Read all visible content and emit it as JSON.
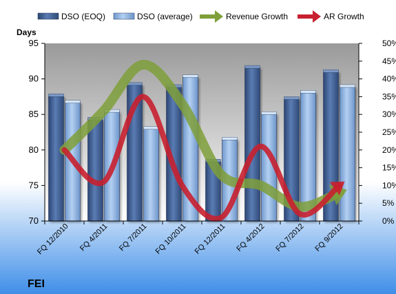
{
  "chart_data": {
    "type": "bar",
    "company": "FEI",
    "ylabel": "Days",
    "categories": [
      "FQ 12/2010",
      "FQ 4/2011",
      "FQ 7/2011",
      "FQ 10/2011",
      "FQ 12/2011",
      "FQ 4/2012",
      "FQ 7/2012",
      "FQ 9/2012"
    ],
    "series": [
      {
        "name": "DSO (EOQ)",
        "type": "bar",
        "axis": "left",
        "color": "#3f5f92",
        "values": [
          87.6,
          84.3,
          89.2,
          88.9,
          78.4,
          91.6,
          87.2,
          91.0
        ]
      },
      {
        "name": "DSO (average)",
        "type": "bar",
        "axis": "left",
        "color": "#8fb3e0",
        "values": [
          86.7,
          85.4,
          83.0,
          90.3,
          81.5,
          85.1,
          88.1,
          88.9
        ]
      },
      {
        "name": "Revenue Growth",
        "type": "line",
        "axis": "right",
        "color": "#7f9f3a",
        "values": [
          20,
          31,
          44,
          33,
          13,
          10,
          4,
          8
        ]
      },
      {
        "name": "AR Growth",
        "type": "line",
        "axis": "right",
        "color": "#c8202f",
        "values": [
          20,
          11,
          35,
          10,
          1,
          21,
          2,
          10
        ]
      }
    ],
    "y_left": {
      "min": 70,
      "max": 95,
      "ticks": [
        "70",
        "75",
        "80",
        "85",
        "90",
        "95"
      ]
    },
    "y_right": {
      "min": 0,
      "max": 50,
      "ticks": [
        "0%",
        "5%",
        "10%",
        "15%",
        "20%",
        "25%",
        "30%",
        "35%",
        "40%",
        "45%",
        "50%"
      ]
    },
    "grid": false,
    "legend_position": "top"
  }
}
